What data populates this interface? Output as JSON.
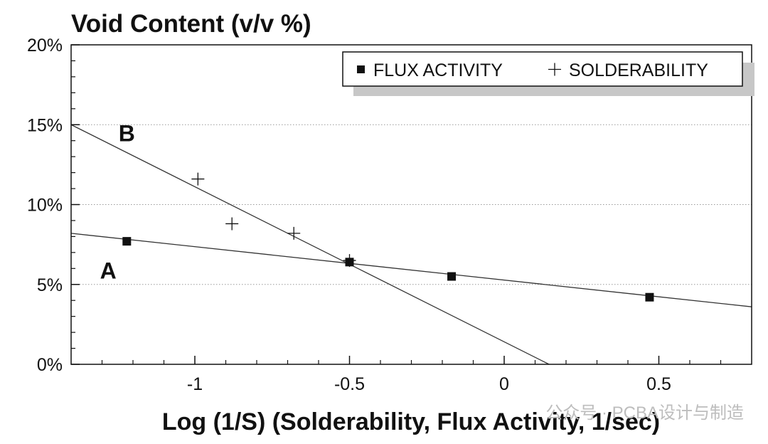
{
  "chart_data": {
    "type": "scatter",
    "title": "Void Content (v/v %)",
    "xlabel": "Log (1/S) (Solderability, Flux Activity, 1/sec)",
    "ylabel": "",
    "xlim": [
      -1.4,
      0.8
    ],
    "ylim": [
      0,
      20
    ],
    "x_ticks": [
      -1,
      -0.5,
      0,
      0.5
    ],
    "x_tick_labels": [
      "-1",
      "-0.5",
      "0",
      "0.5"
    ],
    "y_ticks": [
      0,
      5,
      10,
      15,
      20
    ],
    "y_tick_labels": [
      "0%",
      "5%",
      "10%",
      "15%",
      "20%"
    ],
    "grid": "horizontal dotted",
    "legend_position": "top-right",
    "series": [
      {
        "name": "FLUX ACTIVITY",
        "marker": "square",
        "points": [
          {
            "x": -1.22,
            "y": 7.7
          },
          {
            "x": -0.5,
            "y": 6.4
          },
          {
            "x": -0.17,
            "y": 5.5
          },
          {
            "x": 0.47,
            "y": 4.2
          }
        ]
      },
      {
        "name": "SOLDERABILITY",
        "marker": "plus",
        "points": [
          {
            "x": -0.99,
            "y": 11.6
          },
          {
            "x": -0.88,
            "y": 8.8
          },
          {
            "x": -0.68,
            "y": 8.2
          },
          {
            "x": -0.5,
            "y": 6.5
          }
        ]
      }
    ],
    "trend_lines": [
      {
        "label": "A",
        "x": [
          -1.4,
          0.8
        ],
        "y": [
          8.2,
          3.6
        ]
      },
      {
        "label": "B",
        "x": [
          -1.4,
          0.145
        ],
        "y": [
          15.0,
          0
        ]
      }
    ],
    "annotations": [
      {
        "text": "A",
        "x": -1.28,
        "y": 5.9
      },
      {
        "text": "B",
        "x": -1.22,
        "y": 14.5
      }
    ]
  },
  "watermark": "公众号 · PCBA设计与制造",
  "colors": {
    "axis": "#111111",
    "grid": "#9a9a9a",
    "line": "#333333",
    "marker": "#111111",
    "legend_shadow": "#c7c7c7"
  }
}
